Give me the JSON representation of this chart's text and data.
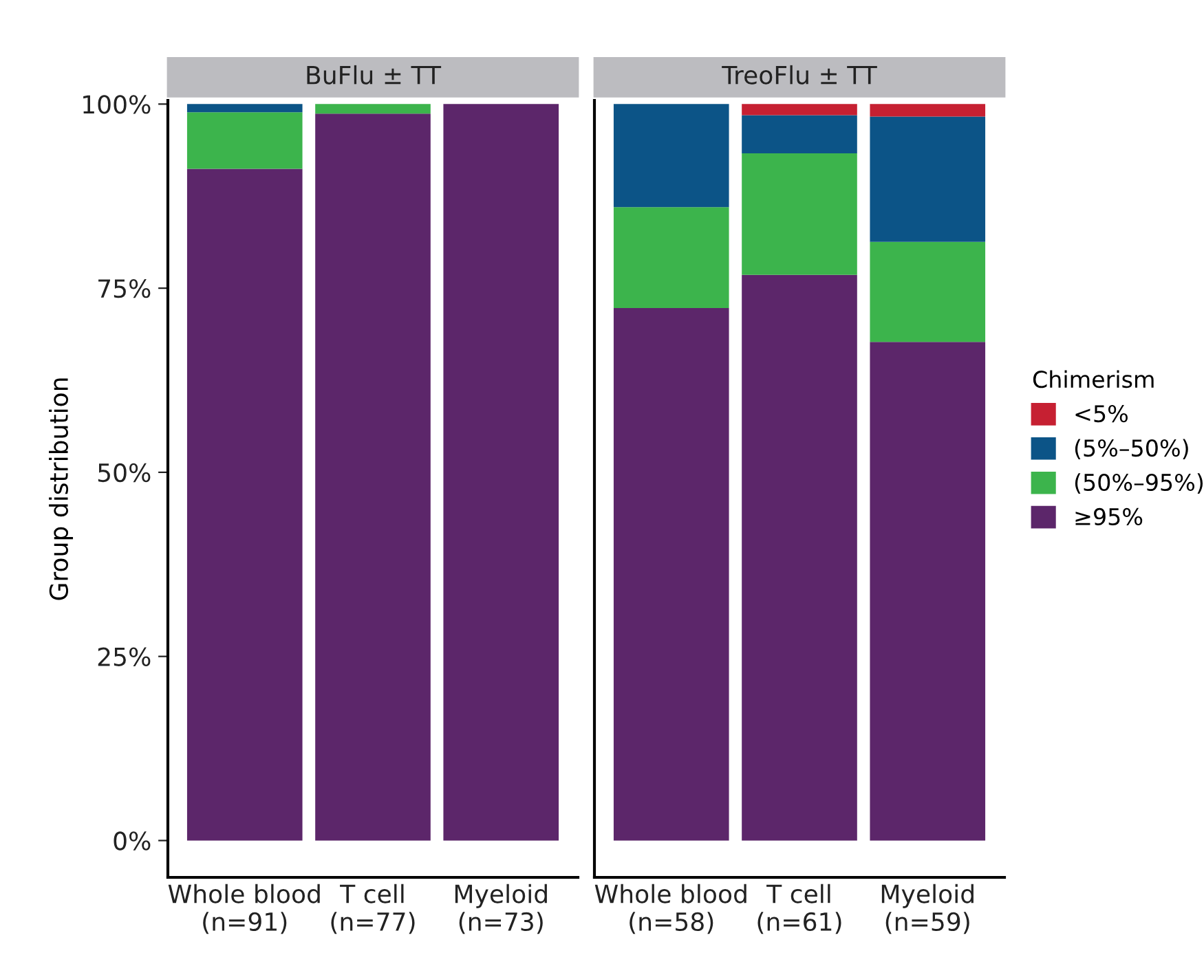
{
  "chart_data": [
    {
      "type": "bar",
      "title": "BuFlu ± TT",
      "ylabel": "Group distribution",
      "stacked": true,
      "grid": false,
      "categories": [
        "Whole blood\n(n=91)",
        "T cell\n(n=77)",
        "Myeloid\n(n=73)"
      ],
      "ylim": [
        -5,
        100.5
      ],
      "yticks": [
        {
          "value": 0,
          "label": "0%"
        },
        {
          "value": 25,
          "label": "25%"
        },
        {
          "value": 50,
          "label": "50%"
        },
        {
          "value": 75,
          "label": "75%"
        },
        {
          "value": 100,
          "label": "100%"
        }
      ],
      "series": [
        {
          "color": "#5c266a",
          "values": [
            91.2,
            98.7,
            100
          ]
        },
        {
          "color": "#3cb44c",
          "values": [
            7.7,
            1.3,
            0
          ]
        },
        {
          "color": "#0c5487",
          "values": [
            1.1,
            0,
            0
          ]
        },
        {
          "color": "#c62032",
          "values": [
            0,
            0,
            0
          ]
        }
      ]
    },
    {
      "type": "bar",
      "title": "TreoFlu ± TT",
      "stacked": true,
      "legend": "right",
      "legend_title": "Chimerism",
      "grid": false,
      "tick_labels": "x",
      "categories": [
        "Whole blood\n(n=58)",
        "T cell\n(n=61)",
        "Myeloid\n(n=59)"
      ],
      "ylim": [
        -5,
        100.5
      ],
      "series": [
        {
          "name": "≥95%",
          "color": "#5c266a",
          "values": [
            72.3,
            76.8,
            67.7
          ]
        },
        {
          "name": "(50%–95%)",
          "color": "#3cb44c",
          "values": [
            13.7,
            16.5,
            13.6
          ]
        },
        {
          "name": "(5%–50%)",
          "color": "#0c5487",
          "values": [
            14.0,
            5.2,
            17.0
          ]
        },
        {
          "name": "<5%",
          "color": "#c62032",
          "values": [
            0,
            1.5,
            1.7
          ]
        }
      ]
    }
  ]
}
